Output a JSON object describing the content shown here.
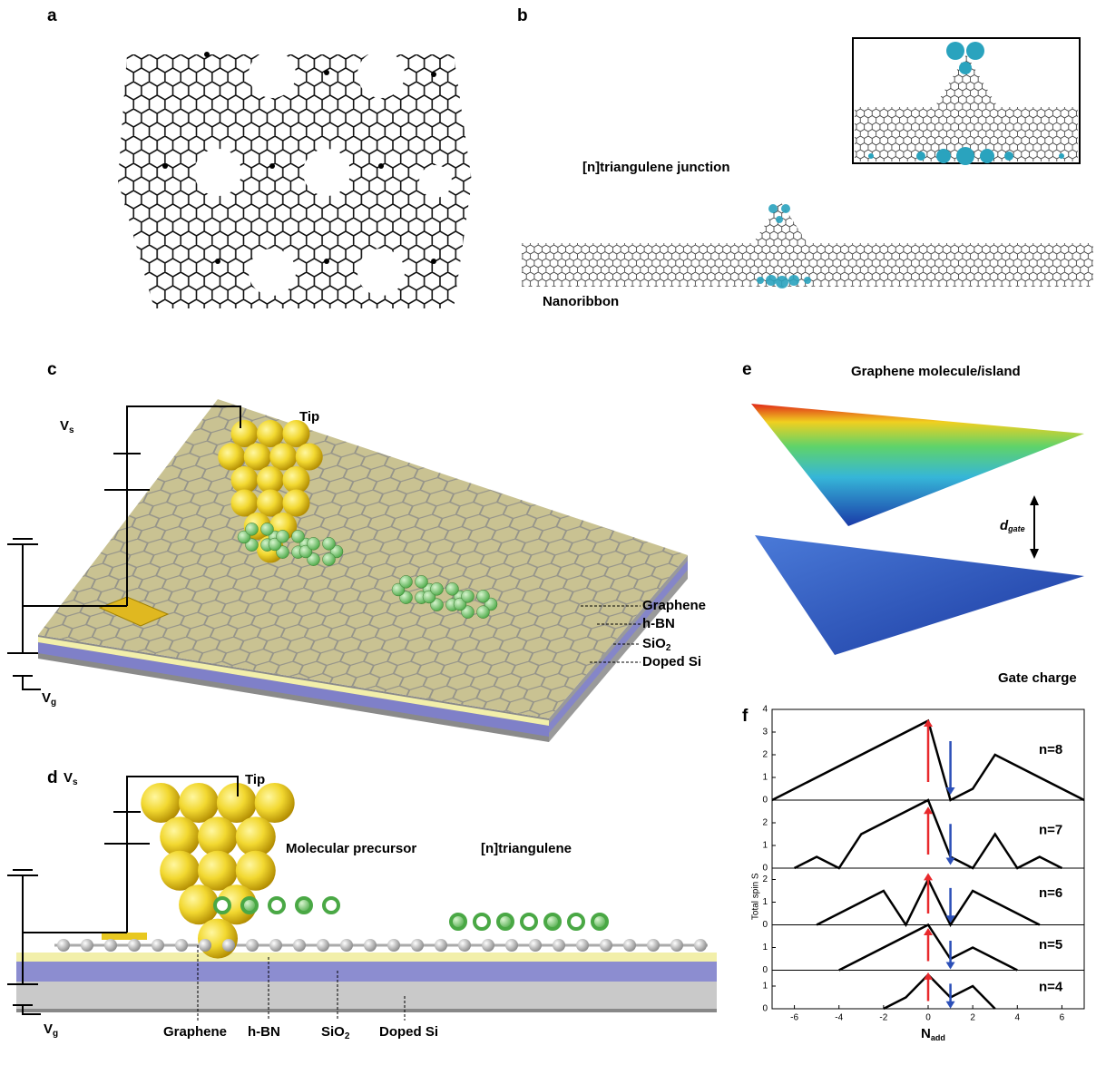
{
  "panel_labels": [
    "a",
    "b",
    "c",
    "d",
    "e",
    "f"
  ],
  "panel_b": {
    "junction_label": "[n]triangulene junction",
    "ribbon_label": "Nanoribbon"
  },
  "panel_c": {
    "tip": "Tip",
    "vs": {
      "text": "V",
      "sub": "s"
    },
    "vg": {
      "text": "V",
      "sub": "g"
    },
    "layers": [
      "Graphene",
      "h-BN",
      {
        "text": "SiO",
        "sub": "2"
      },
      "Doped Si"
    ]
  },
  "panel_d": {
    "tip": "Tip",
    "vs": {
      "text": "V",
      "sub": "s"
    },
    "vg": {
      "text": "V",
      "sub": "g"
    },
    "precursor": "Molecular precursor",
    "triangulene": "[n]triangulene",
    "layers": [
      "Graphene",
      "h-BN",
      {
        "text": "SiO",
        "sub": "2"
      },
      "Doped Si"
    ]
  },
  "panel_e": {
    "top": "Graphene molecule/island",
    "gap": {
      "text": "d",
      "sub": "gate"
    },
    "bottom": "Gate charge"
  },
  "chart_data": [
    {
      "type": "line",
      "label": "n=8",
      "color": "#000000",
      "xlim": [
        -7,
        7
      ],
      "ylim": [
        0,
        4
      ],
      "yticks": [
        0,
        1,
        2,
        3,
        4
      ],
      "x": [
        -7,
        0,
        1,
        2,
        3,
        7
      ],
      "values": [
        0,
        3.5,
        0,
        0.5,
        2,
        0
      ],
      "arrows": [
        {
          "x": 0,
          "direction": "up",
          "color": "#e8292c"
        },
        {
          "x": 1,
          "direction": "down",
          "color": "#2b4fb8"
        }
      ]
    },
    {
      "type": "line",
      "label": "n=7",
      "color": "#000000",
      "xlim": [
        -7,
        7
      ],
      "ylim": [
        0,
        3
      ],
      "yticks": [
        0,
        1,
        2
      ],
      "x": [
        -6,
        -5,
        -4,
        -3,
        0,
        1,
        2,
        3,
        4,
        5,
        6
      ],
      "values": [
        0,
        0.5,
        0,
        1.5,
        3,
        0.5,
        0,
        1.5,
        0,
        0.5,
        0
      ],
      "arrows": [
        {
          "x": 0,
          "direction": "up",
          "color": "#e8292c"
        },
        {
          "x": 1,
          "direction": "down",
          "color": "#2b4fb8"
        }
      ]
    },
    {
      "type": "line",
      "label": "n=6",
      "color": "#000000",
      "xlim": [
        -7,
        7
      ],
      "ylim": [
        0,
        2.5
      ],
      "yticks": [
        0,
        1,
        2
      ],
      "ylabel": "Total spin S",
      "x": [
        -5,
        -2,
        -1,
        0,
        1,
        2,
        5
      ],
      "values": [
        0,
        1.5,
        0,
        2,
        0,
        1.5,
        0
      ],
      "arrows": [
        {
          "x": 0,
          "direction": "up",
          "color": "#e8292c"
        },
        {
          "x": 1,
          "direction": "down",
          "color": "#2b4fb8"
        }
      ]
    },
    {
      "type": "line",
      "label": "n=5",
      "color": "#000000",
      "xlim": [
        -7,
        7
      ],
      "ylim": [
        0,
        2
      ],
      "yticks": [
        0,
        1
      ],
      "x": [
        -4,
        0,
        1,
        2,
        4
      ],
      "values": [
        0,
        2,
        0.5,
        1,
        0
      ],
      "arrows": [
        {
          "x": 0,
          "direction": "up",
          "color": "#e8292c"
        },
        {
          "x": 1,
          "direction": "down",
          "color": "#2b4fb8"
        }
      ]
    },
    {
      "type": "line",
      "label": "n=4",
      "color": "#000000",
      "xlim": [
        -7,
        7
      ],
      "ylim": [
        0,
        1.7
      ],
      "yticks": [
        0,
        1
      ],
      "xticks": [
        -6,
        -4,
        -2,
        0,
        2,
        4,
        6
      ],
      "xlabel": {
        "text": "N",
        "sub": "add"
      },
      "x": [
        -2,
        -1,
        0,
        1,
        2,
        3
      ],
      "values": [
        0,
        0.5,
        1.5,
        0.5,
        1,
        0
      ],
      "arrows": [
        {
          "x": 0,
          "direction": "up",
          "color": "#e8292c"
        },
        {
          "x": 1,
          "direction": "down",
          "color": "#2b4fb8"
        }
      ]
    }
  ]
}
